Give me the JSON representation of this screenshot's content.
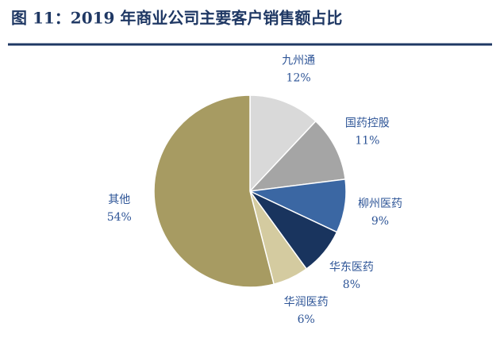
{
  "chart_data": {
    "type": "pie",
    "title": "图 11：2019 年商业公司主要客户销售额占比",
    "categories": [
      "九州通",
      "国药控股",
      "柳州医药",
      "华东医药",
      "华润医药",
      "其他"
    ],
    "values": [
      12,
      11,
      9,
      8,
      6,
      54
    ],
    "value_labels": [
      "12%",
      "11%",
      "9%",
      "8%",
      "6%",
      "54%"
    ],
    "colors": [
      "#d9d9d9",
      "#a5a5a5",
      "#3b67a3",
      "#19345e",
      "#d4cba0",
      "#a79b62"
    ]
  }
}
